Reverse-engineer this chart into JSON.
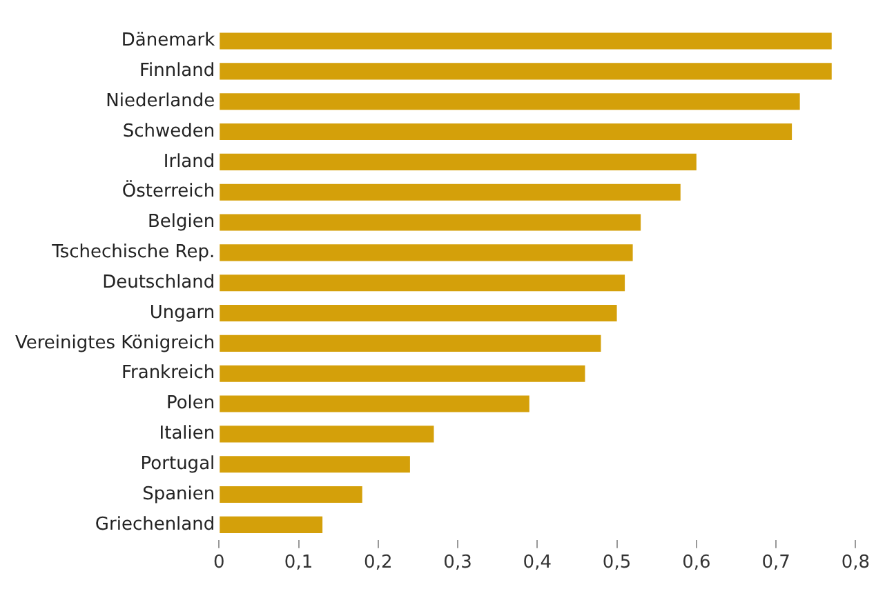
{
  "chart_data": {
    "type": "bar",
    "orientation": "horizontal",
    "categories": [
      "Dänemark",
      "Finnland",
      "Niederlande",
      "Schweden",
      "Irland",
      "Österreich",
      "Belgien",
      "Tschechische Rep.",
      "Deutschland",
      "Ungarn",
      "Vereinigtes Königreich",
      "Frankreich",
      "Polen",
      "Italien",
      "Portugal",
      "Spanien",
      "Griechenland"
    ],
    "values": [
      0.77,
      0.77,
      0.73,
      0.72,
      0.6,
      0.58,
      0.53,
      0.52,
      0.51,
      0.5,
      0.48,
      0.46,
      0.39,
      0.27,
      0.24,
      0.18,
      0.13
    ],
    "color": "#d4a00a",
    "xlim": [
      0,
      0.8
    ],
    "xticks": [
      0,
      {
        "value": 0.1,
        "label": "0,1"
      },
      {
        "value": 0.2,
        "label": "0,2"
      },
      {
        "value": 0.3,
        "label": "0,3"
      },
      {
        "value": 0.4,
        "label": "0,4"
      },
      {
        "value": 0.5,
        "label": "0,5"
      },
      {
        "value": 0.6,
        "label": "0,6"
      },
      {
        "value": 0.7,
        "label": "0,7"
      },
      {
        "value": 0.8,
        "label": "0,8"
      }
    ],
    "grid": false,
    "legend": false
  }
}
